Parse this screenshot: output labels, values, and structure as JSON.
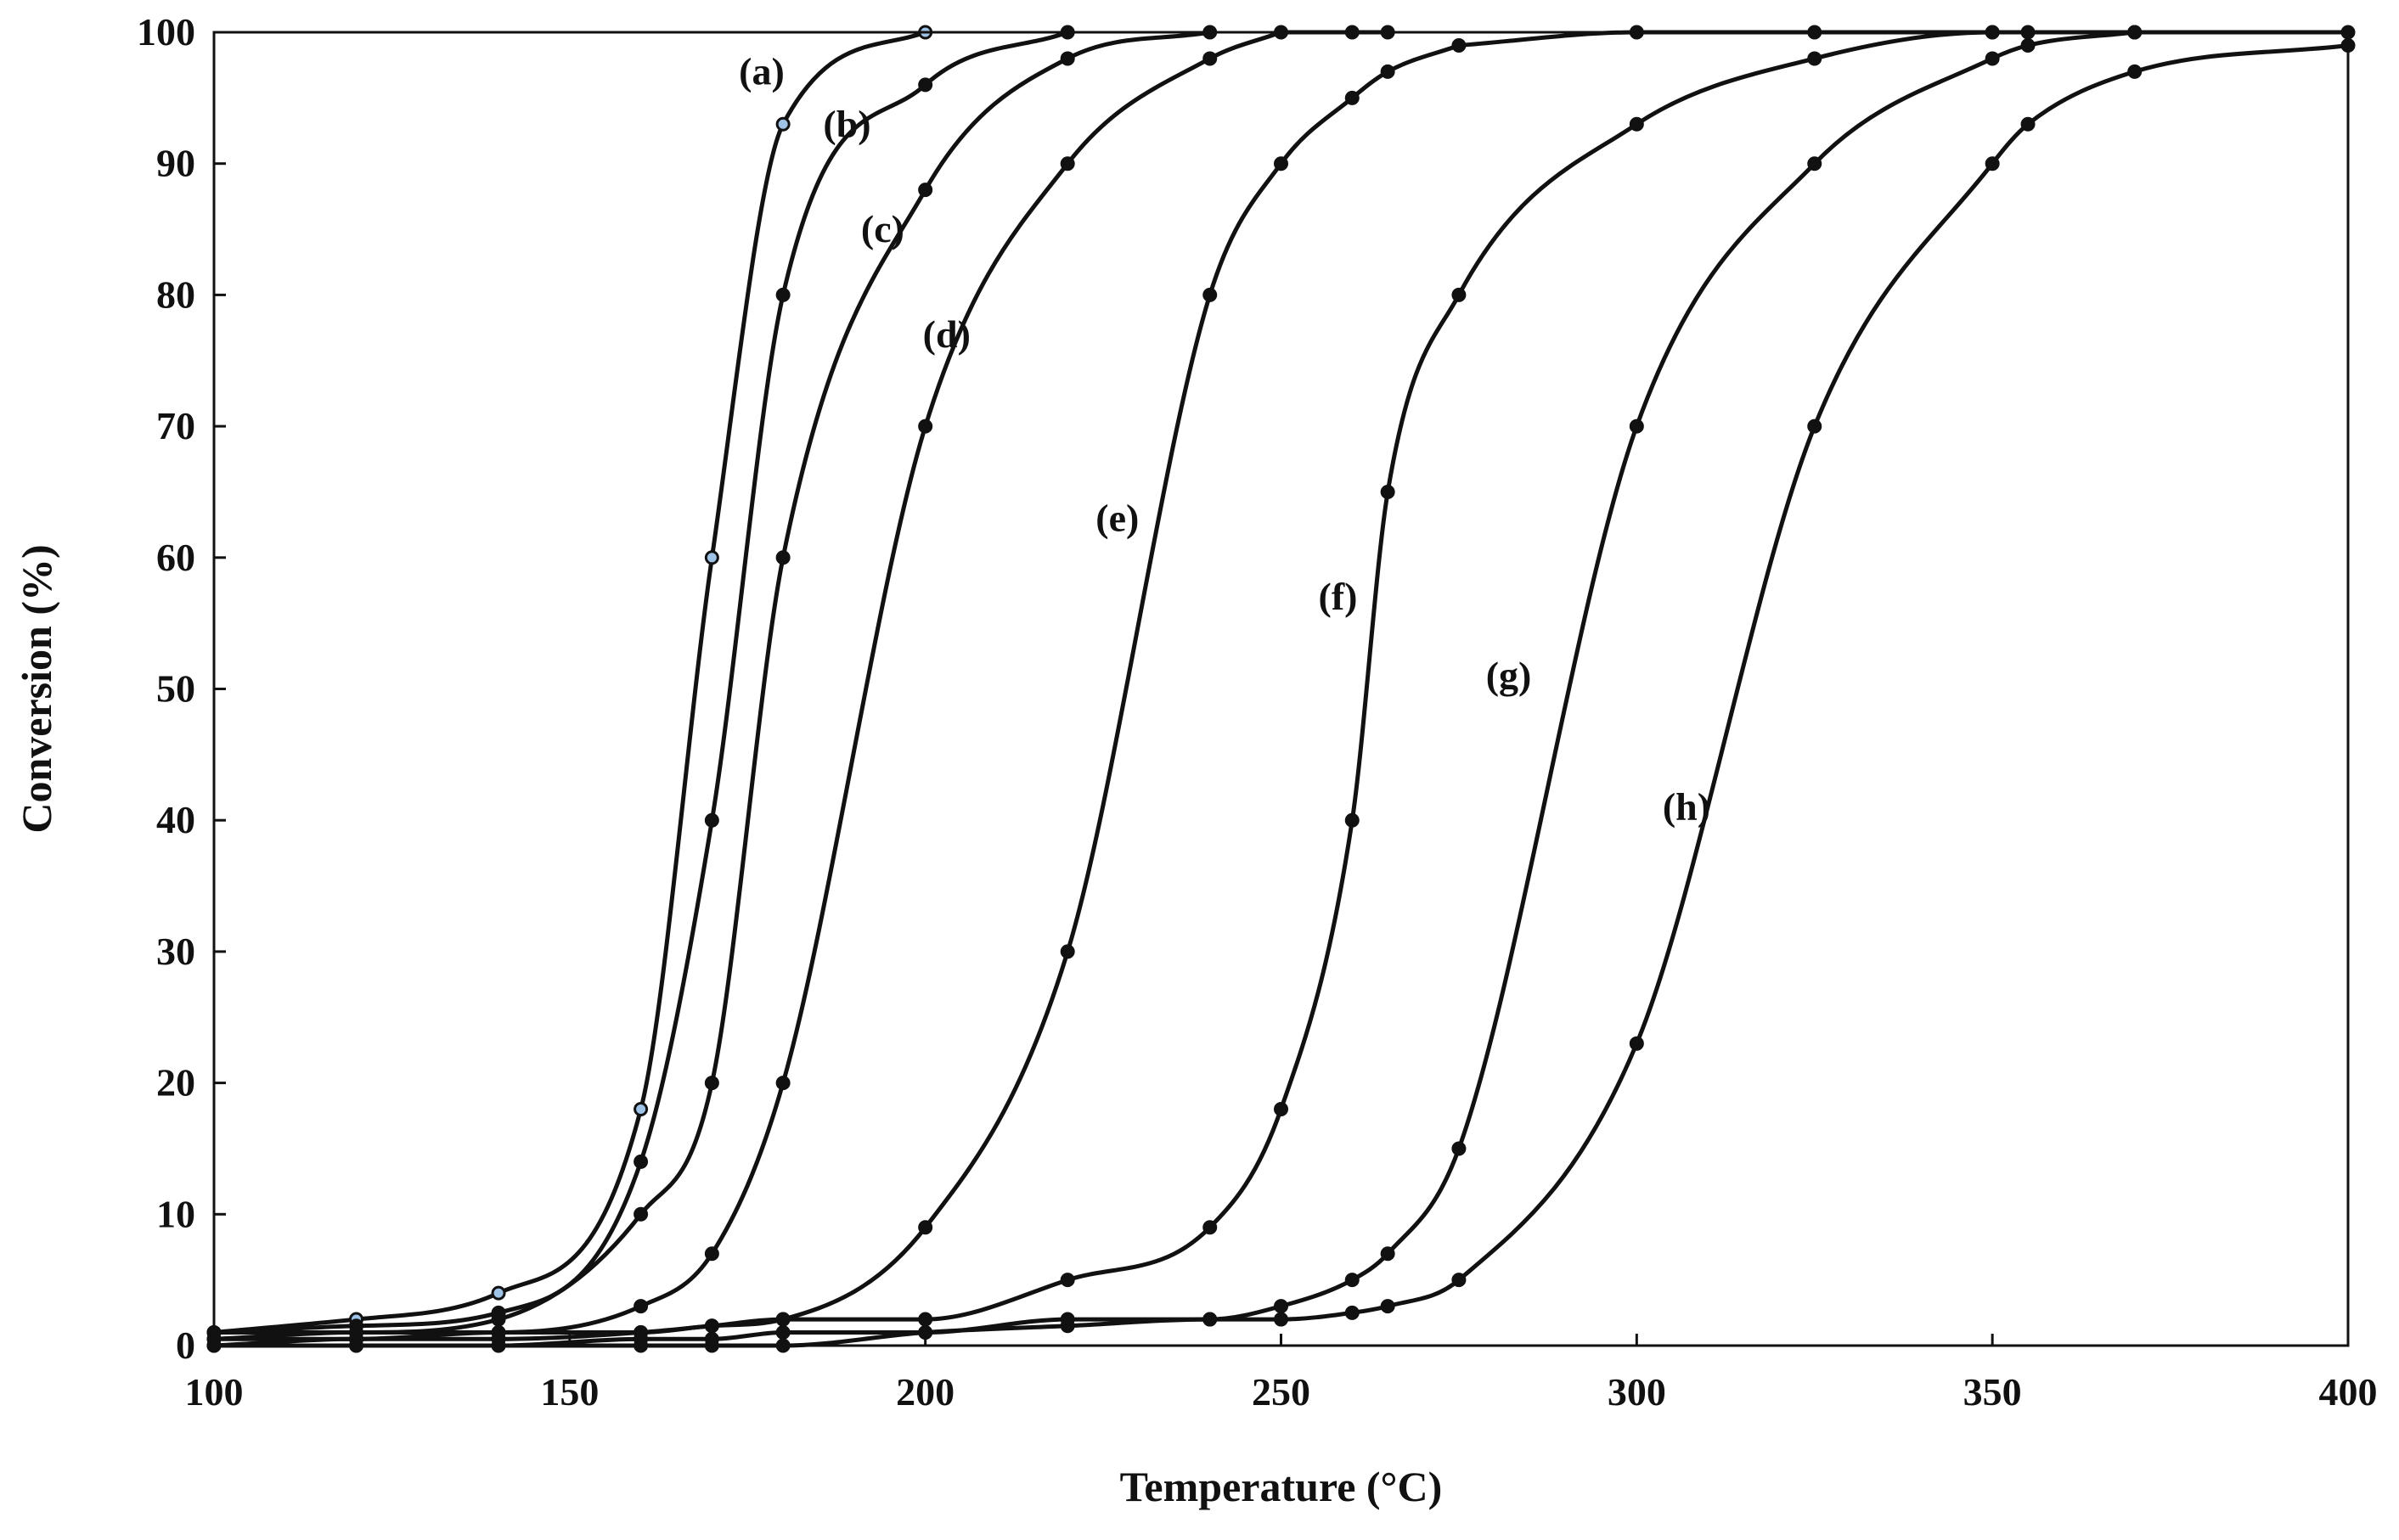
{
  "chart_data": {
    "type": "line",
    "title": "",
    "xlabel": "Temperature (°C)",
    "ylabel": "Conversion (%)",
    "xlim": [
      100,
      400
    ],
    "ylim": [
      0,
      100
    ],
    "xticks": [
      100,
      150,
      200,
      250,
      300,
      350,
      400
    ],
    "yticks": [
      0,
      10,
      20,
      30,
      40,
      50,
      60,
      70,
      80,
      90,
      100
    ],
    "grid": false,
    "legend": "none",
    "colors": {
      "line": "#111111",
      "marker_a_fill": "#9ec3e6",
      "marker_default": "#111111"
    },
    "series": [
      {
        "name": "(a)",
        "marker": "light",
        "x": [
          100,
          120,
          140,
          160,
          170,
          180,
          200
        ],
        "y": [
          1,
          2,
          4,
          18,
          60,
          93,
          100
        ]
      },
      {
        "name": "(b)",
        "marker": "dark",
        "x": [
          100,
          120,
          140,
          160,
          170,
          180,
          200,
          220
        ],
        "y": [
          1,
          1.5,
          2.5,
          14,
          40,
          80,
          96,
          100
        ]
      },
      {
        "name": "(c)",
        "marker": "dark",
        "x": [
          100,
          120,
          140,
          160,
          170,
          180,
          200,
          220,
          240
        ],
        "y": [
          1,
          1,
          2,
          10,
          20,
          60,
          88,
          98,
          100
        ]
      },
      {
        "name": "(d)",
        "marker": "dark",
        "x": [
          100,
          120,
          140,
          160,
          170,
          180,
          200,
          220,
          240,
          250
        ],
        "y": [
          0.5,
          1,
          1,
          3,
          7,
          20,
          70,
          90,
          98,
          100
        ]
      },
      {
        "name": "(e)",
        "marker": "dark",
        "x": [
          100,
          120,
          140,
          160,
          170,
          180,
          200,
          220,
          240,
          250,
          260,
          265,
          275
        ],
        "y": [
          0.5,
          0.5,
          1,
          1,
          1.5,
          2,
          9,
          30,
          80,
          90,
          95,
          97,
          99
        ]
      },
      {
        "name": "(f)",
        "marker": "dark",
        "x": [
          100,
          120,
          140,
          160,
          170,
          180,
          200,
          220,
          240,
          250,
          260,
          265,
          275,
          300,
          325,
          350,
          370
        ],
        "y": [
          0,
          0.5,
          0.5,
          1,
          1.5,
          2,
          2,
          5,
          9,
          18,
          40,
          65,
          80,
          93,
          98,
          100,
          100
        ]
      },
      {
        "name": "(g)",
        "marker": "dark",
        "x": [
          100,
          120,
          140,
          160,
          170,
          180,
          200,
          220,
          240,
          250,
          260,
          265,
          275,
          300,
          325,
          350,
          355,
          370
        ],
        "y": [
          0,
          0,
          0,
          0.5,
          0.5,
          1,
          1,
          2,
          2,
          3,
          5,
          7,
          15,
          70,
          90,
          98,
          99,
          100
        ]
      },
      {
        "name": "(h)",
        "marker": "dark",
        "x": [
          100,
          120,
          140,
          160,
          170,
          180,
          200,
          220,
          240,
          250,
          260,
          265,
          275,
          300,
          325,
          350,
          355,
          370,
          400
        ],
        "y": [
          0,
          0,
          0,
          0,
          0,
          0,
          1,
          1.5,
          2,
          2,
          2.5,
          3,
          5,
          23,
          70,
          90,
          93,
          97,
          99
        ]
      }
    ],
    "extra_points": [
      {
        "series": "(e)",
        "x": 300,
        "y": 100
      },
      {
        "series": "(e)",
        "x": 325,
        "y": 100
      },
      {
        "series": "(e)",
        "x": 350,
        "y": 100
      },
      {
        "series": "(e)",
        "x": 355,
        "y": 100
      },
      {
        "series": "(e)",
        "x": 370,
        "y": 100
      },
      {
        "series": "(e)",
        "x": 400,
        "y": 100
      },
      {
        "series": "(d)",
        "x": 260,
        "y": 100
      },
      {
        "series": "(d)",
        "x": 265,
        "y": 100
      }
    ],
    "annotations": [
      {
        "text": "(a)",
        "x": 177,
        "y": 97
      },
      {
        "text": "(b)",
        "x": 189,
        "y": 93
      },
      {
        "text": "(c)",
        "x": 194,
        "y": 85
      },
      {
        "text": "(d)",
        "x": 203,
        "y": 77
      },
      {
        "text": "(e)",
        "x": 227,
        "y": 63
      },
      {
        "text": "(f)",
        "x": 258,
        "y": 57
      },
      {
        "text": "(g)",
        "x": 282,
        "y": 51
      },
      {
        "text": "(h)",
        "x": 307,
        "y": 41
      }
    ]
  }
}
